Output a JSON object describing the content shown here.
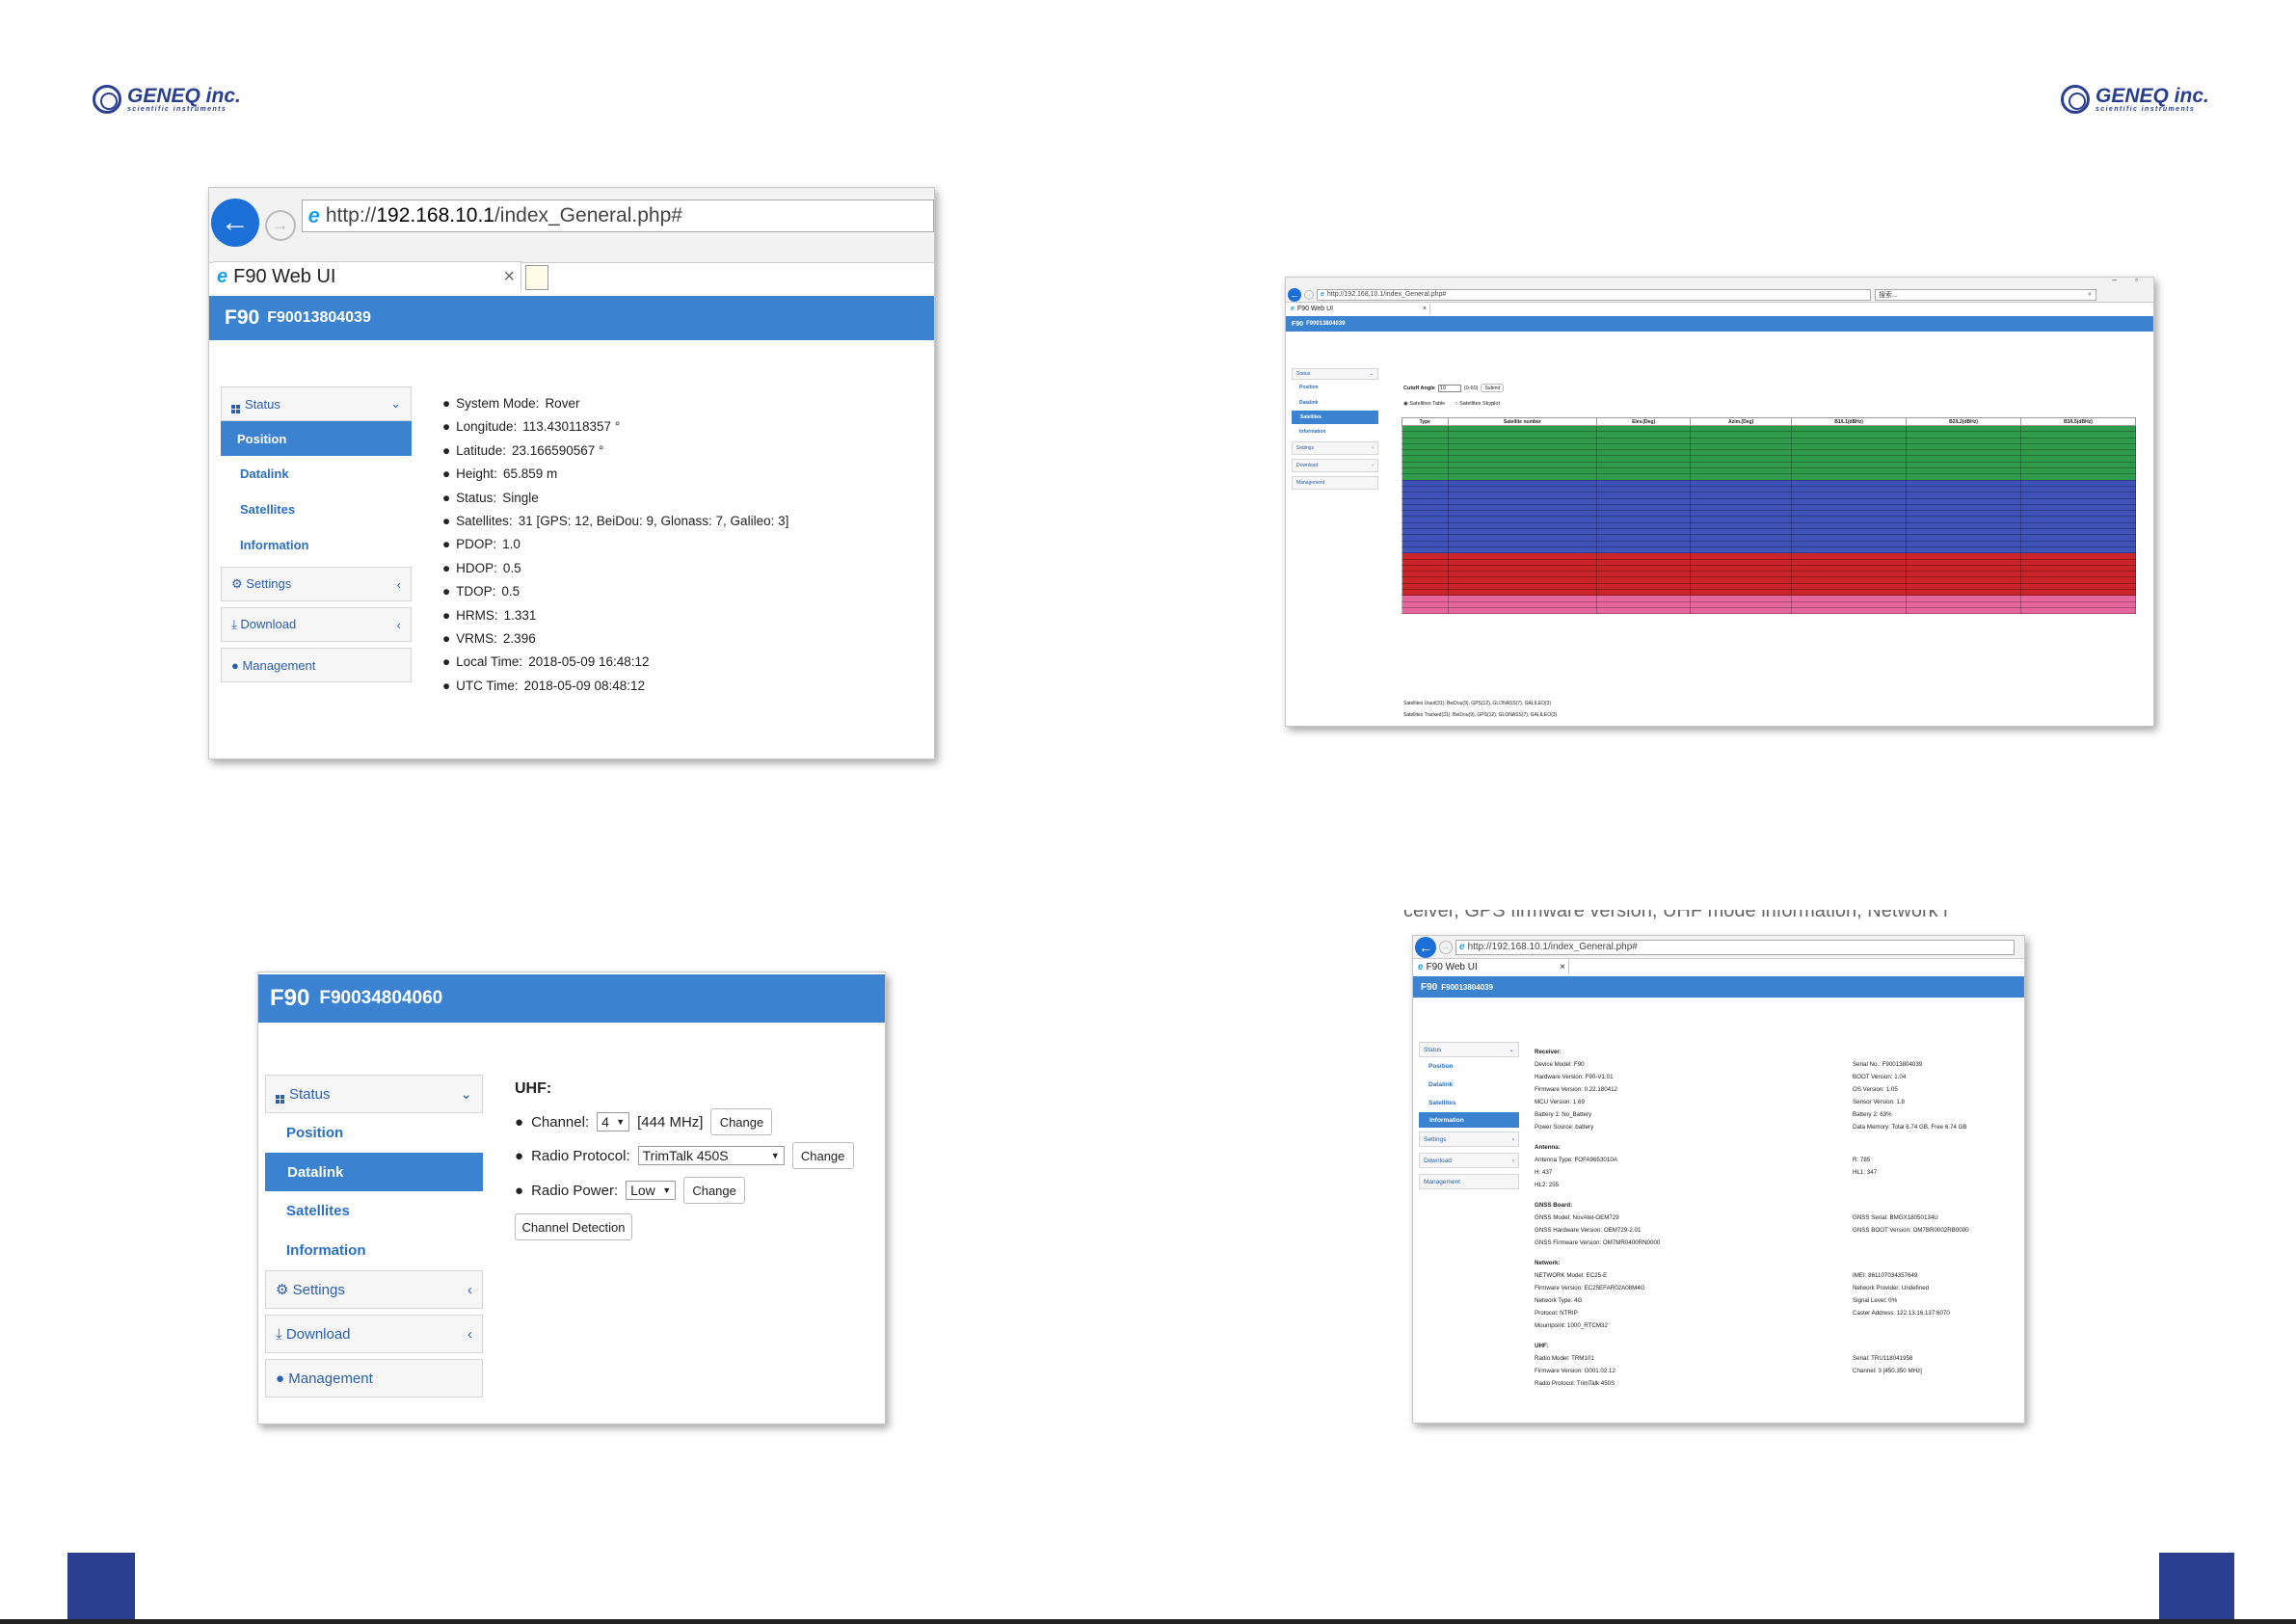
{
  "logo": {
    "brand": "GENEQ inc.",
    "tagline": "scientific instruments"
  },
  "shot1": {
    "url_prefix": "http://",
    "url_host": "192.168.10.1",
    "url_path": "/index_General.php#",
    "tab_title": "F90 Web UI",
    "header_model": "F90",
    "header_serial": "F90013804039",
    "menu": {
      "status": "Status",
      "position": "Position",
      "datalink": "Datalink",
      "satellites": "Satellites",
      "information": "Information",
      "settings": "Settings",
      "download": "Download",
      "management": "Management"
    },
    "fields": [
      {
        "label": "System Mode:",
        "value": "Rover"
      },
      {
        "label": "Longitude:",
        "value": "113.430118357 °"
      },
      {
        "label": "Latitude:",
        "value": "23.166590567 °"
      },
      {
        "label": "Height:",
        "value": "65.859 m"
      },
      {
        "label": "Status:",
        "value": "Single"
      },
      {
        "label": "Satellites:",
        "value": "31 [GPS: 12, BeiDou: 9, Glonass: 7, Galileo: 3]"
      },
      {
        "label": "PDOP:",
        "value": "1.0"
      },
      {
        "label": "HDOP:",
        "value": "0.5"
      },
      {
        "label": "TDOP:",
        "value": "0.5"
      },
      {
        "label": "HRMS:",
        "value": "1.331"
      },
      {
        "label": "VRMS:",
        "value": "2.396"
      },
      {
        "label": "Local Time:",
        "value": "2018-05-09 16:48:12"
      },
      {
        "label": "UTC Time:",
        "value": "2018-05-09 08:48:12"
      }
    ]
  },
  "shot2": {
    "header_model": "F90",
    "header_serial": "F90034804060",
    "menu": {
      "status": "Status",
      "position": "Position",
      "datalink": "Datalink",
      "satellites": "Satellites",
      "information": "Information",
      "settings": "Settings",
      "download": "Download",
      "management": "Management"
    },
    "uhf_title": "UHF:",
    "channel_label": "Channel:",
    "channel_value": "4",
    "channel_freq": "[444 MHz]",
    "protocol_label": "Radio Protocol:",
    "protocol_value": "TrimTalk 450S",
    "power_label": "Radio Power:",
    "power_value": "Low",
    "change": "Change",
    "detect": "Channel Detection"
  },
  "shot3": {
    "url": "http://192.168.10.1/index_General.php#",
    "search": "搜索...",
    "tab_title": "F90 Web UI",
    "header_model": "F90",
    "header_serial": "F90013804039",
    "menu": {
      "status": "Status",
      "position": "Position",
      "datalink": "Datalink",
      "satellites": "Satellites",
      "information": "Information",
      "settings": "Settings",
      "download": "Download",
      "management": "Management"
    },
    "cutoff_label": "Cutoff Angle",
    "cutoff_value": "10",
    "cutoff_range": "(0-60)",
    "submit": "Submit",
    "radio_table": "Satellites Table",
    "radio_sky": "Satellites Skyplot",
    "columns": [
      "Type",
      "Satellite number",
      "Elev.(Deg)",
      "Azim.(Deg)",
      "B1/L1(dBHz)",
      "B2/L2(dBHz)",
      "B3/L5(dBHz)"
    ],
    "footer_used": "Satellites Used(31): BeiDou(9), GPS(12), GLONASS(7), GALILEO(3)",
    "footer_tracked": "Satellites Tracked(31): BeiDou(9), GPS(12), GLONASS(7), GALILEO(3)"
  },
  "caption_fragment": "ceiver, GPS firmware version, UHF mode information, Network i",
  "shot4": {
    "url": "http://192.168.10.1/index_General.php#",
    "tab_title": "F90 Web UI",
    "header_model": "F90",
    "header_serial": "F90013804039",
    "menu": {
      "status": "Status",
      "position": "Position",
      "datalink": "Datalink",
      "satellites": "Satellites",
      "information": "Information",
      "settings": "Settings",
      "download": "Download",
      "management": "Management"
    },
    "sections": [
      {
        "title": "Receiver:",
        "left": [
          "Device Model:  F90",
          "Hardware Version:  F90-V1.01",
          "Firmware Version:  0.22.180412",
          "MCU Version:  1.69",
          "Battery 1:  No_Battery",
          "Power Source:  battery"
        ],
        "right": [
          "Serial No.:  F90013804039",
          "BOOT Version:  1.04",
          "OS Version:  1.05",
          "Sensor Version:  1.8",
          "Battery 2:  63%",
          "Data Memory:  Total 6.74 GB,  Free 6.74 GB"
        ]
      },
      {
        "title": "Antenna:",
        "left": [
          "Antenna Type:  FOFA9653010A",
          "H:  437",
          "HL2:  255"
        ],
        "right": [
          "R:  785",
          "HL1:  347"
        ]
      },
      {
        "title": "GNSS Board:",
        "left": [
          "GNSS Model:  NovAtel-OEM729",
          "GNSS Hardware Version:  OEM729-2.01",
          "GNSS Firmware Version:  OM7MR0400RN0000"
        ],
        "right": [
          "GNSS Serial:  BMGX18050134U",
          "GNSS BOOT Version:  OM7BR0002RB0000"
        ]
      },
      {
        "title": "Network:",
        "left": [
          "NETWORK Model:  EC25-E",
          "Firmware Version:  EC25EFAR02A08M4G",
          "Network Type:  4G",
          "Protocol:  NTRIP",
          "Mountpoint:  1000_RTCM32"
        ],
        "right": [
          "IMEI:  861107034357649",
          "Network Provider:  Undefined",
          "Signal Level:  0%",
          "Caster Address:  122.13.16.137:6070"
        ]
      },
      {
        "title": "UHF:",
        "left": [
          "Radio Model:  TRM101",
          "Firmware Version:  G001.02.12",
          "Radio Protocol:  TrimTalk 450S"
        ],
        "right": [
          "Serial:  TRU118041958",
          "Channel:  3 [450.350 MHz]"
        ]
      }
    ]
  }
}
